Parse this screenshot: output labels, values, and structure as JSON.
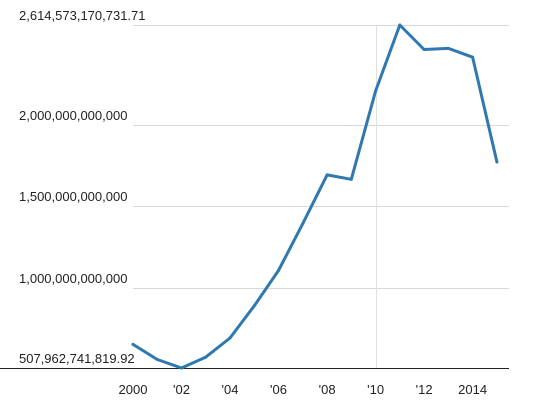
{
  "chart_data": {
    "type": "line",
    "title": "",
    "xlabel": "",
    "ylabel": "",
    "x": [
      2000,
      2001,
      2002,
      2003,
      2004,
      2005,
      2006,
      2007,
      2008,
      2009,
      2010,
      2011,
      2012,
      2013,
      2014,
      2015
    ],
    "series": [
      {
        "values": [
          653000000000,
          560000000000,
          507962741819.92,
          575000000000,
          692000000000,
          890000000000,
          1107000000000,
          1395000000000,
          1694000000000,
          1667000000000,
          2209000000000,
          2614573170731.71,
          2464000000000,
          2471000000000,
          2417000000000,
          1774000000000
        ]
      }
    ],
    "ylim": [
      507962741819.92,
      2614573170731.71
    ],
    "y_ticks": [
      {
        "value": 2614573170731.71,
        "label": "2,614,573,170,731.71"
      },
      {
        "value": 2000000000000,
        "label": "2,000,000,000,000"
      },
      {
        "value": 1500000000000,
        "label": "1,500,000,000,000"
      },
      {
        "value": 1000000000000,
        "label": "1,000,000,000,000"
      },
      {
        "value": 507962741819.92,
        "label": "507,962,741,819.92"
      }
    ],
    "x_ticks": [
      {
        "value": 2000,
        "label": "2000"
      },
      {
        "value": 2002,
        "label": "'02"
      },
      {
        "value": 2004,
        "label": "'04"
      },
      {
        "value": 2006,
        "label": "'06"
      },
      {
        "value": 2008,
        "label": "'08"
      },
      {
        "value": 2010,
        "label": "'10"
      },
      {
        "value": 2012,
        "label": "'12"
      },
      {
        "value": 2014,
        "label": "2014"
      }
    ],
    "grid": "horizontal",
    "colors": {
      "line": "#2f78b0",
      "grid": "#d9d9d9",
      "vertical_gridline": "#e0e0e0",
      "axis": "#222222"
    }
  }
}
